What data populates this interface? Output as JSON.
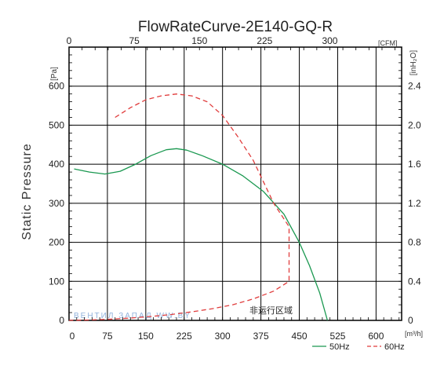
{
  "chart_data": {
    "type": "line",
    "title": "FlowRateCurve-2E140-GQ-R",
    "ylabel": "Static Pressure",
    "y_unit": "[Pa]",
    "y2_unit": "[inH₂O]",
    "x_unit": "[m³/h]",
    "x2_unit": "[CFM]",
    "xlim": [
      0,
      650
    ],
    "ylim": [
      0,
      700
    ],
    "x_ticks": [
      0,
      75,
      150,
      225,
      300,
      375,
      450,
      525,
      600
    ],
    "y_ticks": [
      0,
      100,
      200,
      300,
      400,
      500,
      600
    ],
    "x2_ticks": [
      0,
      75,
      150,
      225,
      300
    ],
    "y2_ticks": [
      0,
      0.4,
      0.8,
      1.2,
      1.6,
      2.0,
      2.4
    ],
    "grid": true,
    "legend_position": "bottom-right",
    "annotation": "非运行区域",
    "watermark": "ВЕНТИЛ ЗАПАД WW.BY",
    "series": [
      {
        "name": "50Hz",
        "color": "#1a9850",
        "dash": "solid",
        "x": [
          10,
          40,
          70,
          100,
          130,
          160,
          190,
          210,
          230,
          260,
          300,
          340,
          380,
          420,
          450,
          470,
          490,
          505
        ],
        "y": [
          388,
          380,
          375,
          382,
          400,
          422,
          437,
          440,
          436,
          422,
          400,
          370,
          330,
          272,
          200,
          140,
          70,
          0
        ]
      },
      {
        "name": "60Hz",
        "color": "#e03c3c",
        "dash": "dashed",
        "x": [
          90,
          120,
          150,
          180,
          210,
          240,
          270,
          300,
          330,
          360,
          400,
          430,
          430,
          400,
          360,
          320,
          280,
          240,
          200,
          160,
          120,
          80,
          40,
          0
        ],
        "y": [
          520,
          545,
          565,
          575,
          580,
          575,
          560,
          525,
          470,
          410,
          300,
          240,
          100,
          75,
          55,
          40,
          30,
          22,
          15,
          10,
          6,
          3,
          1,
          0
        ]
      }
    ]
  }
}
